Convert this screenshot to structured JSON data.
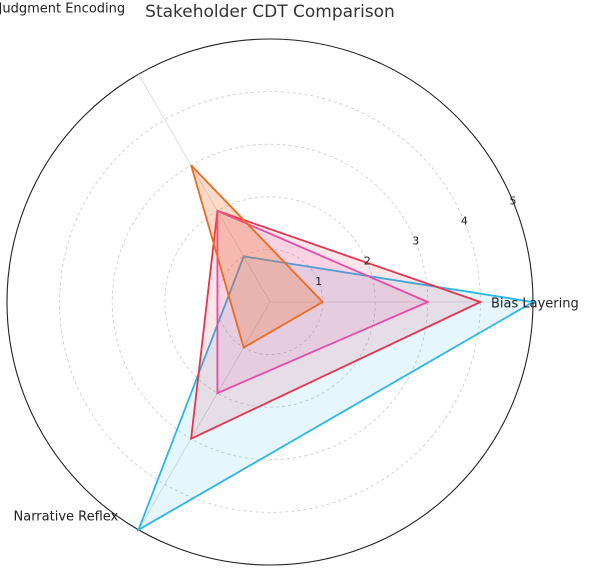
{
  "chart_data": {
    "type": "radar",
    "title": "Stakeholder CDT Comparison",
    "axes": [
      "Bias Layering",
      "Judgment Encoding",
      "Narrative Reflex"
    ],
    "rlim": [
      0,
      5
    ],
    "r_ticks": [
      1,
      2,
      3,
      4,
      5
    ],
    "grid": true,
    "series": [
      {
        "values": [
          5.0,
          1.0,
          5.0
        ],
        "color": "#2bb6ea",
        "fill_opacity": 0.12
      },
      {
        "values": [
          4.0,
          2.0,
          3.0
        ],
        "color": "#e8334f",
        "fill_opacity": 0.12
      },
      {
        "values": [
          3.0,
          2.0,
          2.0
        ],
        "color": "#e84aa8",
        "fill_opacity": 0.12
      },
      {
        "values": [
          1.0,
          3.0,
          1.0
        ],
        "color": "#ee6a20",
        "fill_opacity": 0.25
      }
    ]
  }
}
